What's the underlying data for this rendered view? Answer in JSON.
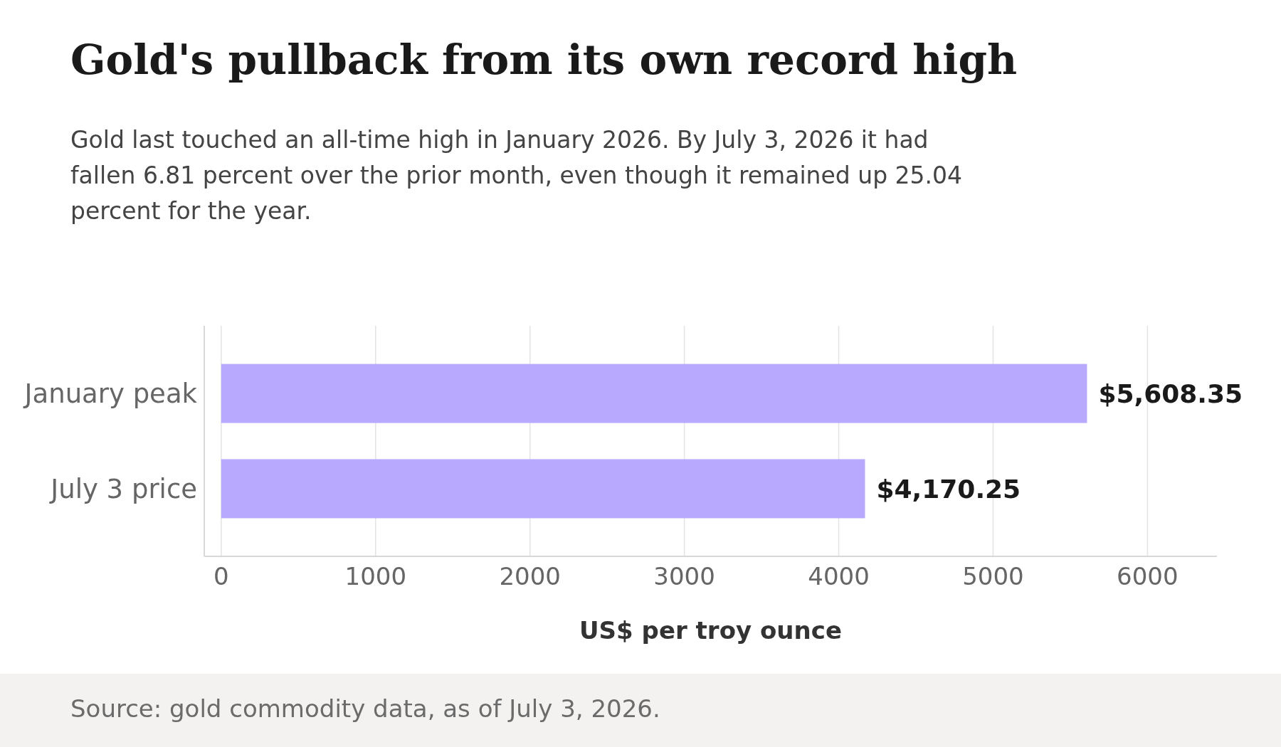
{
  "chart_data": {
    "type": "bar",
    "orientation": "horizontal",
    "title": "Gold's pullback from its own record high",
    "subtitle": "Gold last touched an all-time high in January 2026. By July 3, 2026 it had fallen 6.81 percent over the prior month, even though it remained up 25.04 percent for the year.",
    "categories": [
      "January peak",
      "July 3 price"
    ],
    "values": [
      5608.35,
      4170.25
    ],
    "value_labels": [
      "$5,608.35",
      "$4,170.25"
    ],
    "color": "#b8a9ff",
    "xlabel": "US$ per troy ounce",
    "xlim": [
      -110,
      6450
    ],
    "xticks": [
      0,
      1000,
      2000,
      3000,
      4000,
      5000,
      6000
    ],
    "grid": "x",
    "annotations": [
      "Source: gold commodity data, as of July 3, 2026."
    ]
  }
}
